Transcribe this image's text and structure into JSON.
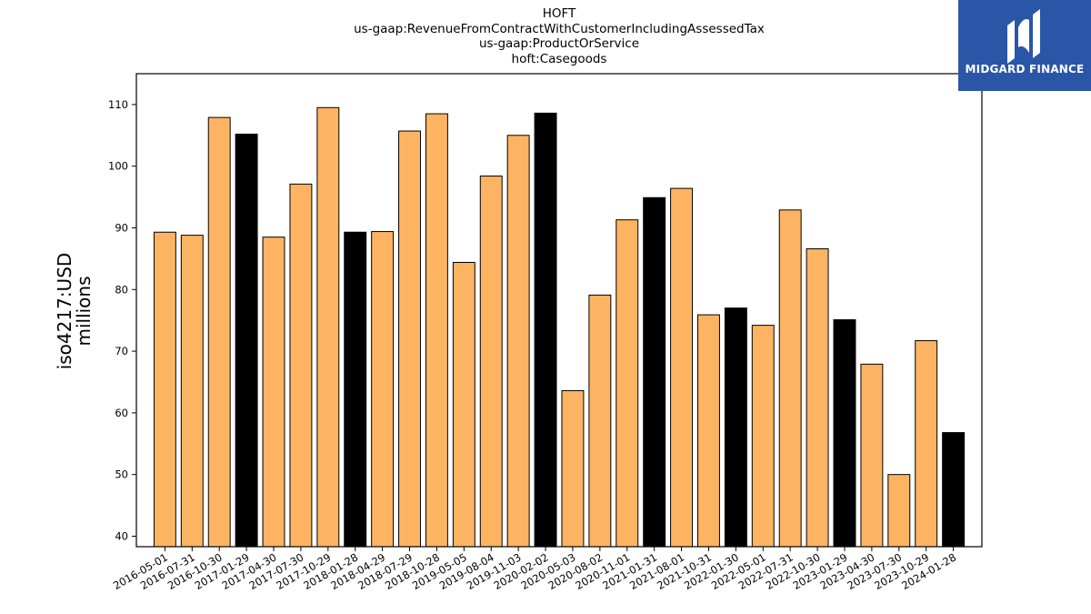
{
  "chart_data": {
    "type": "bar",
    "title_lines": [
      "HOFT",
      "us-gaap:RevenueFromContractWithCustomerIncludingAssessedTax",
      "us-gaap:ProductOrService",
      "hoft:Casegoods"
    ],
    "ylabel_lines": [
      "iso4217:USD",
      "millions"
    ],
    "xlabel": "",
    "ylim": [
      38.3,
      115.0
    ],
    "yticks": [
      40,
      50,
      60,
      70,
      80,
      90,
      100,
      110
    ],
    "categories": [
      "2016-05-01",
      "2016-07-31",
      "2016-10-30",
      "2017-01-29",
      "2017-04-30",
      "2017-07-30",
      "2017-10-29",
      "2018-01-28",
      "2018-04-29",
      "2018-07-29",
      "2018-10-28",
      "2019-05-05",
      "2019-08-04",
      "2019-11-03",
      "2020-02-02",
      "2020-05-03",
      "2020-08-02",
      "2020-11-01",
      "2021-01-31",
      "2021-08-01",
      "2021-10-31",
      "2022-01-30",
      "2022-05-01",
      "2022-07-31",
      "2022-10-30",
      "2023-01-29",
      "2023-04-30",
      "2023-07-30",
      "2023-10-29",
      "2024-01-28"
    ],
    "values": [
      89.3,
      88.8,
      107.9,
      105.2,
      88.5,
      97.1,
      109.5,
      89.3,
      89.4,
      105.7,
      108.5,
      84.4,
      98.4,
      105.0,
      108.6,
      63.6,
      79.1,
      91.3,
      94.9,
      96.4,
      75.9,
      77.0,
      74.2,
      92.9,
      86.6,
      75.1,
      67.9,
      50.0,
      71.7,
      56.8
    ],
    "highlight": [
      false,
      false,
      false,
      true,
      false,
      false,
      false,
      true,
      false,
      false,
      false,
      false,
      false,
      false,
      true,
      false,
      false,
      false,
      true,
      false,
      false,
      true,
      false,
      false,
      false,
      true,
      false,
      false,
      false,
      true
    ],
    "colors": {
      "bar": "#fdb462",
      "highlight": "#000000",
      "edge": "#000000"
    },
    "grid": false,
    "legend": "none"
  },
  "logo": {
    "text": "MIDGARD FINANCE",
    "icon": "midgard-logo-icon"
  }
}
